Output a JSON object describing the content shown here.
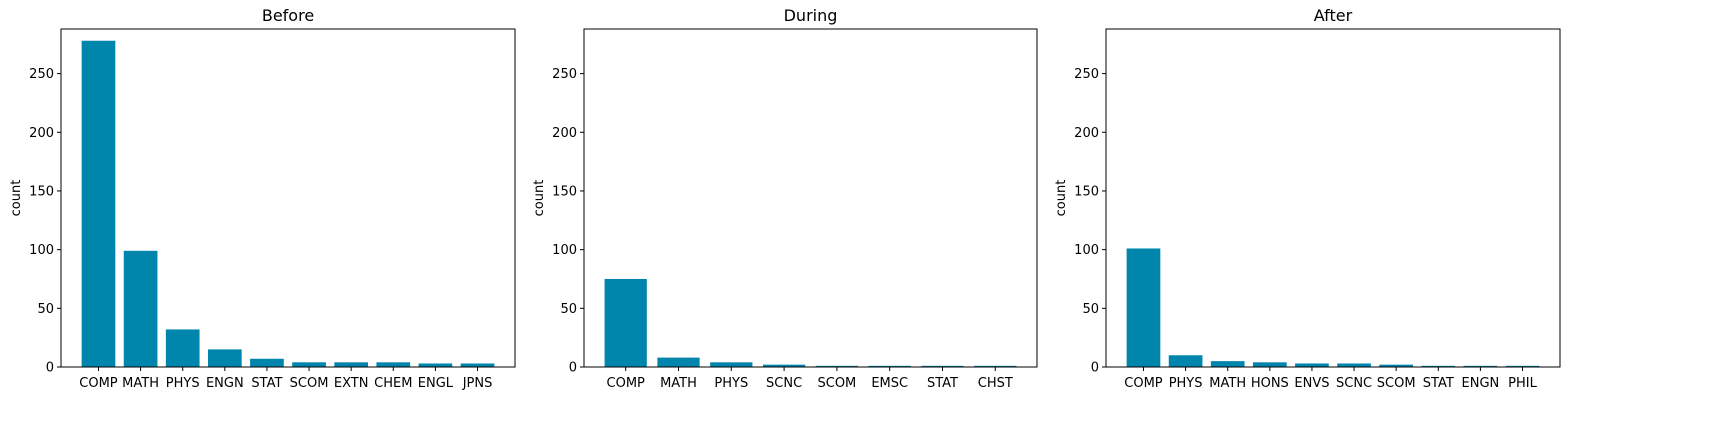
{
  "colors": {
    "bar": "#0086ad",
    "axis": "#000000",
    "background": "#ffffff"
  },
  "chart_data": [
    {
      "type": "bar",
      "title": "Before",
      "xlabel": "",
      "ylabel": "count",
      "ylim": [
        0,
        288
      ],
      "yticks": [
        0,
        50,
        100,
        150,
        200,
        250
      ],
      "grid": false,
      "categories": [
        "COMP",
        "MATH",
        "PHYS",
        "ENGN",
        "STAT",
        "SCOM",
        "EXTN",
        "CHEM",
        "ENGL",
        "JPNS"
      ],
      "values": [
        278,
        99,
        32,
        15,
        7,
        4,
        4,
        4,
        3,
        3
      ]
    },
    {
      "type": "bar",
      "title": "During",
      "xlabel": "",
      "ylabel": "count",
      "ylim": [
        0,
        288
      ],
      "yticks": [
        0,
        50,
        100,
        150,
        200,
        250
      ],
      "grid": false,
      "categories": [
        "COMP",
        "MATH",
        "PHYS",
        "SCNC",
        "SCOM",
        "EMSC",
        "STAT",
        "CHST"
      ],
      "values": [
        75,
        8,
        4,
        2,
        1,
        1,
        1,
        1
      ]
    },
    {
      "type": "bar",
      "title": "After",
      "xlabel": "",
      "ylabel": "count",
      "ylim": [
        0,
        288
      ],
      "yticks": [
        0,
        50,
        100,
        150,
        200,
        250
      ],
      "grid": false,
      "categories": [
        "COMP",
        "PHYS",
        "MATH",
        "HONS",
        "ENVS",
        "SCNC",
        "SCOM",
        "STAT",
        "ENGN",
        "PHIL"
      ],
      "values": [
        101,
        10,
        5,
        4,
        3,
        3,
        2,
        1,
        1,
        1
      ]
    }
  ]
}
